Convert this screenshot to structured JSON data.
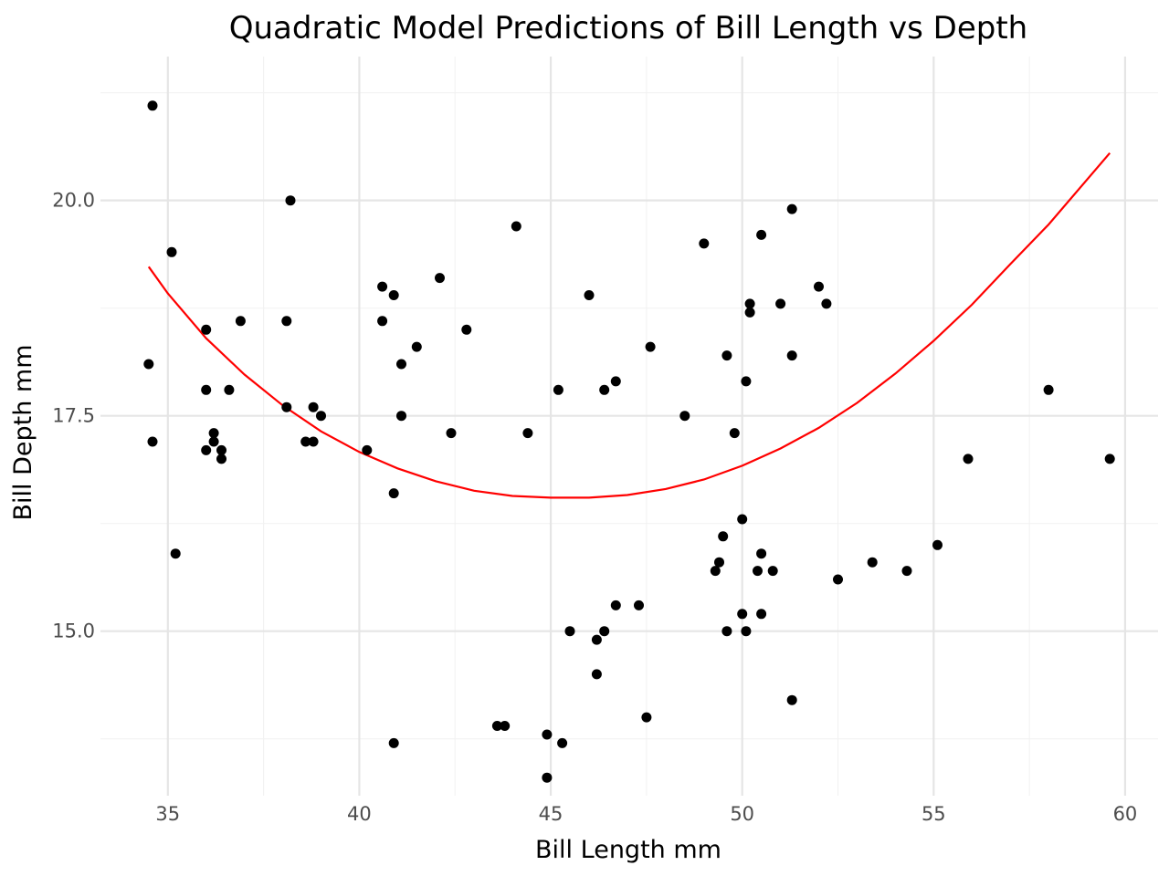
{
  "chart_data": {
    "type": "scatter",
    "title": "Quadratic Model Predictions of Bill Length vs Depth",
    "xlabel": "Bill Length mm",
    "ylabel": "Bill Depth mm",
    "xlim": [
      33.24,
      60.86
    ],
    "ylim": [
      13.09,
      21.67
    ],
    "x_ticks": [
      35,
      40,
      45,
      50,
      55,
      60
    ],
    "x_tick_labels": [
      "35",
      "40",
      "45",
      "50",
      "55",
      "60"
    ],
    "x_minor_ticks": [
      37.5,
      42.5,
      47.5,
      52.5,
      57.5
    ],
    "y_ticks": [
      15.0,
      17.5,
      20.0
    ],
    "y_tick_labels": [
      "15.0",
      "17.5",
      "20.0"
    ],
    "y_minor_ticks": [
      13.75,
      16.25,
      18.75,
      21.25
    ],
    "grid": true,
    "legend": "none",
    "colors": {
      "points": "#000000",
      "fit_line": "#ff0000",
      "grid_major": "#e5e5e5",
      "grid_minor": "#f2f2f2"
    },
    "series": [
      {
        "name": "observed",
        "kind": "scatter",
        "points": [
          [
            34.6,
            21.1
          ],
          [
            34.5,
            18.1
          ],
          [
            34.6,
            17.2
          ],
          [
            35.1,
            19.4
          ],
          [
            35.2,
            15.9
          ],
          [
            36.0,
            18.5
          ],
          [
            36.0,
            17.8
          ],
          [
            36.0,
            17.1
          ],
          [
            36.2,
            17.3
          ],
          [
            36.2,
            17.2
          ],
          [
            36.4,
            17.1
          ],
          [
            36.4,
            17.0
          ],
          [
            36.6,
            17.8
          ],
          [
            36.9,
            18.6
          ],
          [
            38.1,
            18.6
          ],
          [
            38.1,
            17.6
          ],
          [
            38.2,
            20.0
          ],
          [
            38.6,
            17.2
          ],
          [
            38.8,
            17.2
          ],
          [
            38.8,
            17.6
          ],
          [
            39.0,
            17.5
          ],
          [
            40.2,
            17.1
          ],
          [
            40.6,
            19.0
          ],
          [
            40.6,
            18.6
          ],
          [
            40.9,
            18.9
          ],
          [
            40.9,
            16.6
          ],
          [
            40.9,
            13.7
          ],
          [
            41.1,
            18.1
          ],
          [
            41.1,
            17.5
          ],
          [
            41.5,
            18.3
          ],
          [
            42.1,
            19.1
          ],
          [
            42.4,
            17.3
          ],
          [
            42.8,
            18.5
          ],
          [
            43.6,
            13.9
          ],
          [
            43.8,
            13.9
          ],
          [
            44.1,
            19.7
          ],
          [
            44.4,
            17.3
          ],
          [
            44.9,
            13.8
          ],
          [
            44.9,
            13.3
          ],
          [
            45.2,
            17.8
          ],
          [
            45.3,
            13.7
          ],
          [
            45.5,
            15.0
          ],
          [
            46.0,
            18.9
          ],
          [
            46.2,
            14.9
          ],
          [
            46.2,
            14.5
          ],
          [
            46.4,
            17.8
          ],
          [
            46.4,
            15.0
          ],
          [
            46.7,
            17.9
          ],
          [
            46.7,
            15.3
          ],
          [
            47.3,
            15.3
          ],
          [
            47.5,
            14.0
          ],
          [
            47.6,
            18.3
          ],
          [
            48.5,
            17.5
          ],
          [
            49.0,
            19.5
          ],
          [
            49.3,
            15.7
          ],
          [
            49.4,
            15.8
          ],
          [
            49.5,
            16.1
          ],
          [
            49.6,
            18.2
          ],
          [
            49.6,
            15.0
          ],
          [
            49.8,
            17.3
          ],
          [
            50.0,
            16.3
          ],
          [
            50.0,
            15.2
          ],
          [
            50.1,
            17.9
          ],
          [
            50.1,
            15.0
          ],
          [
            50.2,
            18.8
          ],
          [
            50.2,
            18.7
          ],
          [
            50.4,
            15.7
          ],
          [
            50.5,
            19.6
          ],
          [
            50.5,
            15.9
          ],
          [
            50.5,
            15.2
          ],
          [
            50.8,
            15.7
          ],
          [
            51.0,
            18.8
          ],
          [
            51.3,
            19.9
          ],
          [
            51.3,
            18.2
          ],
          [
            51.3,
            14.2
          ],
          [
            52.0,
            19.0
          ],
          [
            52.2,
            18.8
          ],
          [
            52.5,
            15.6
          ],
          [
            53.4,
            15.8
          ],
          [
            54.3,
            15.7
          ],
          [
            55.1,
            16.0
          ],
          [
            55.9,
            17.0
          ],
          [
            58.0,
            17.8
          ],
          [
            59.6,
            17.0
          ]
        ]
      },
      {
        "name": "quadratic fit",
        "kind": "line",
        "points": [
          [
            34.5,
            19.23
          ],
          [
            35.0,
            18.92
          ],
          [
            36.0,
            18.4
          ],
          [
            37.0,
            17.98
          ],
          [
            38.0,
            17.62
          ],
          [
            39.0,
            17.32
          ],
          [
            40.0,
            17.08
          ],
          [
            41.0,
            16.89
          ],
          [
            42.0,
            16.74
          ],
          [
            43.0,
            16.63
          ],
          [
            44.0,
            16.57
          ],
          [
            45.0,
            16.55
          ],
          [
            46.0,
            16.55
          ],
          [
            47.0,
            16.58
          ],
          [
            48.0,
            16.65
          ],
          [
            49.0,
            16.76
          ],
          [
            50.0,
            16.92
          ],
          [
            51.0,
            17.12
          ],
          [
            52.0,
            17.36
          ],
          [
            53.0,
            17.65
          ],
          [
            54.0,
            17.99
          ],
          [
            55.0,
            18.37
          ],
          [
            56.0,
            18.79
          ],
          [
            57.0,
            19.26
          ],
          [
            58.0,
            19.72
          ],
          [
            59.6,
            20.55
          ]
        ]
      }
    ]
  }
}
